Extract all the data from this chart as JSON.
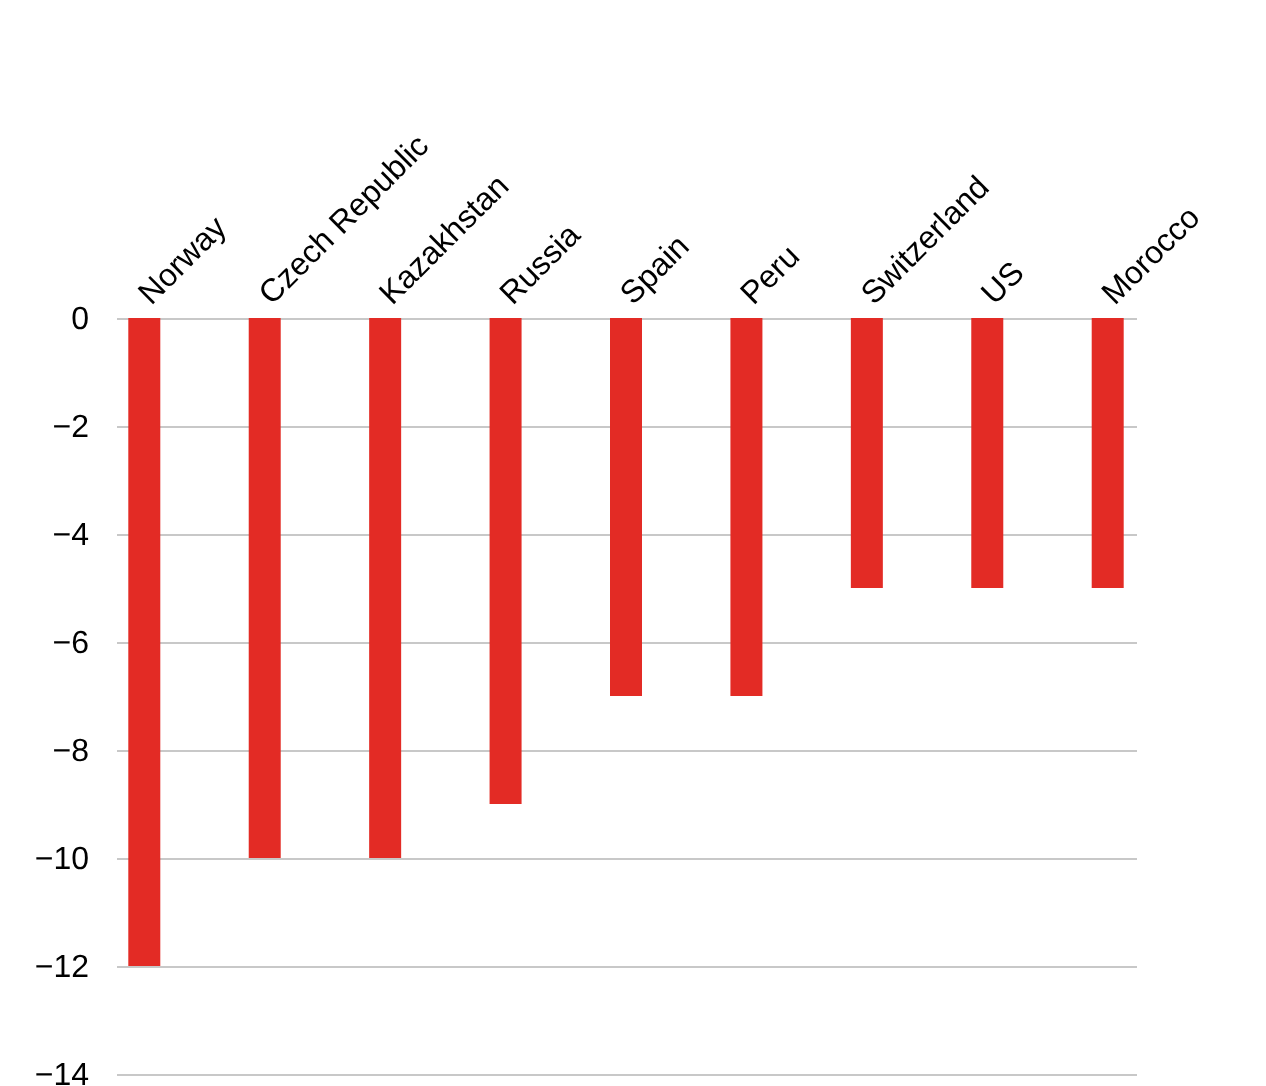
{
  "chart_data": {
    "type": "bar",
    "categories": [
      "Norway",
      "Czech Republic",
      "Kazakhstan",
      "Russia",
      "Spain",
      "Peru",
      "Switzerland",
      "US",
      "Morocco"
    ],
    "values": [
      -12,
      -10,
      -10,
      -9,
      -7,
      -7,
      -5,
      -5,
      -5
    ],
    "color": "#e32b25",
    "ylim": [
      -14,
      0
    ],
    "yticks": [
      0,
      -2,
      -4,
      -6,
      -8,
      -10,
      -12,
      -14
    ],
    "grid": "y"
  }
}
